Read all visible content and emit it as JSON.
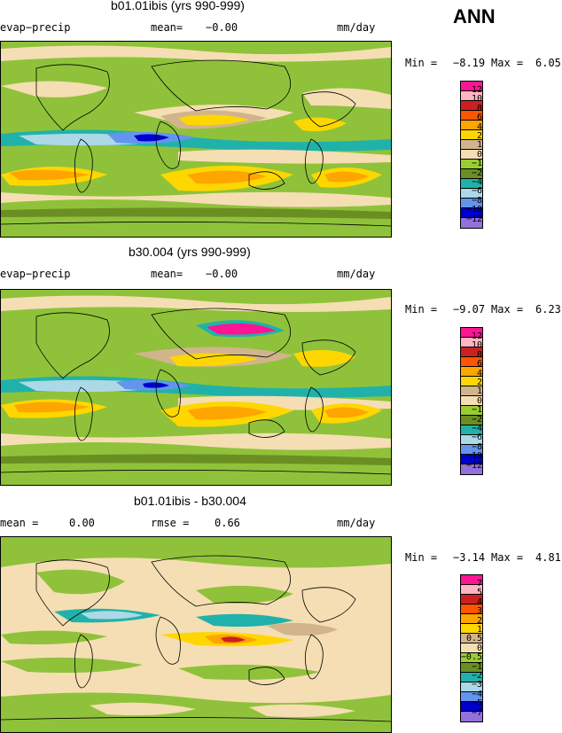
{
  "season": "ANN",
  "legend_colors": [
    "#ff1493",
    "#ffb6c1",
    "#cc2020",
    "#ff5500",
    "#ffa500",
    "#ffd700",
    "#d2b48c",
    "#f5deb3",
    "#9acd32",
    "#6b8e23",
    "#20b2aa",
    "#add8e6",
    "#6495ed",
    "#0000cd",
    "#9370db"
  ],
  "panels": [
    {
      "title": "b01.01ibis (yrs 990-999)",
      "left_label": "evap−precip",
      "mid_key": "mean=",
      "mid_val": "−0.00",
      "right_label": "mm/day",
      "min_label": "Min =",
      "min_val": "−8.19",
      "max_label": "Max =",
      "max_val": "6.05",
      "levels": [
        "12",
        "10",
        "8",
        "6",
        "4",
        "2",
        "1",
        "0",
        "−1",
        "−2",
        "−4",
        "−6",
        "−8",
        "−10",
        "−12"
      ]
    },
    {
      "title": "b30.004 (yrs 990-999)",
      "left_label": "evap−precip",
      "mid_key": "mean=",
      "mid_val": "−0.00",
      "right_label": "mm/day",
      "min_label": "Min =",
      "min_val": "−9.07",
      "max_label": "Max =",
      "max_val": "6.23",
      "levels": [
        "12",
        "10",
        "8",
        "6",
        "4",
        "2",
        "1",
        "0",
        "−1",
        "−2",
        "−4",
        "−6",
        "−8",
        "−10",
        "−12"
      ]
    },
    {
      "title": "b01.01ibis - b30.004",
      "left_label": "mean =",
      "left_val": "0.00",
      "mid_key": "rmse =",
      "mid_val": "0.66",
      "right_label": "mm/day",
      "min_label": "Min =",
      "min_val": "−3.14",
      "max_label": "Max =",
      "max_val": "4.81",
      "levels": [
        "7",
        "5",
        "4",
        "3",
        "2",
        "1",
        "0.5",
        "0",
        "−0.5",
        "−1",
        "−2",
        "−3",
        "−4",
        "−5",
        "−7"
      ]
    }
  ],
  "chart_data": [
    {
      "type": "heatmap",
      "title": "b01.01ibis (yrs 990-999)",
      "variable": "evap−precip",
      "units": "mm/day",
      "mean": -0.0,
      "min": -8.19,
      "max": 6.05,
      "contour_levels": [
        12,
        10,
        8,
        6,
        4,
        2,
        1,
        0,
        -1,
        -2,
        -4,
        -6,
        -8,
        -10,
        -12
      ]
    },
    {
      "type": "heatmap",
      "title": "b30.004 (yrs 990-999)",
      "variable": "evap−precip",
      "units": "mm/day",
      "mean": -0.0,
      "min": -9.07,
      "max": 6.23,
      "contour_levels": [
        12,
        10,
        8,
        6,
        4,
        2,
        1,
        0,
        -1,
        -2,
        -4,
        -6,
        -8,
        -10,
        -12
      ]
    },
    {
      "type": "heatmap",
      "title": "b01.01ibis - b30.004",
      "units": "mm/day",
      "mean": 0.0,
      "rmse": 0.66,
      "min": -3.14,
      "max": 4.81,
      "contour_levels": [
        7,
        5,
        4,
        3,
        2,
        1,
        0.5,
        0,
        -0.5,
        -1,
        -2,
        -3,
        -4,
        -5,
        -7
      ]
    }
  ]
}
